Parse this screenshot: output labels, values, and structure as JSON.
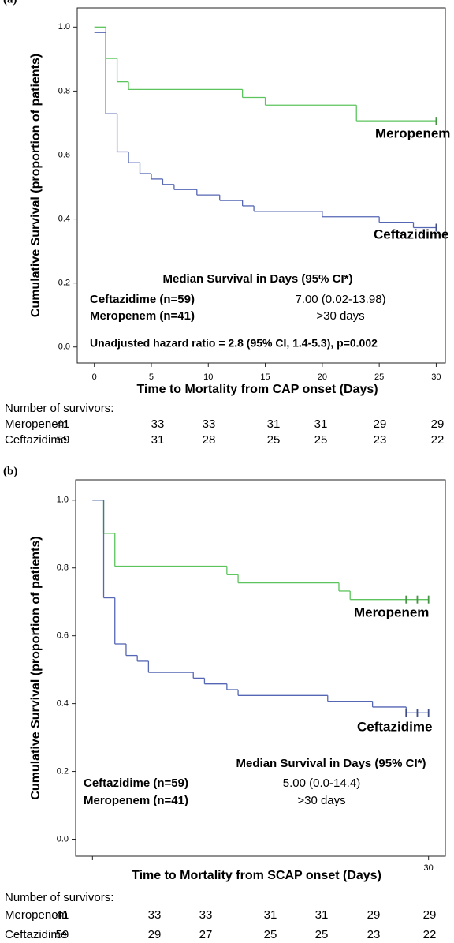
{
  "chart_data": [
    {
      "type": "line",
      "panel_label": "(a)",
      "ylabel": "Cumulative Survival (proportion of patients)",
      "xlabel": "Time to Mortality from CAP onset (Days)",
      "xlim": [
        -1.5,
        30.8
      ],
      "ylim": [
        -0.05,
        1.06
      ],
      "xticks": [
        0,
        5,
        10,
        15,
        20,
        25,
        30
      ],
      "yticks": [
        {
          "value": 0,
          "label": "0.0"
        },
        0.2,
        0.4,
        0.6,
        0.8,
        {
          "value": 1,
          "label": "1.0"
        }
      ],
      "series": [
        {
          "name": "Meropenem",
          "color": "#5cc45c",
          "x": [
            0,
            1,
            2,
            3,
            13,
            15,
            23
          ],
          "values": [
            1,
            0.902,
            0.829,
            0.805,
            0.78,
            0.756,
            0.707
          ],
          "censored_x": [
            30
          ]
        },
        {
          "name": "Ceftazidime",
          "color": "#5566b4",
          "x": [
            0,
            1,
            2,
            3,
            4,
            5,
            6,
            7,
            9,
            11,
            13,
            14,
            20,
            25,
            28
          ],
          "values": [
            0.983,
            0.729,
            0.61,
            0.576,
            0.542,
            0.525,
            0.508,
            0.492,
            0.475,
            0.458,
            0.441,
            0.424,
            0.407,
            0.39,
            0.373
          ],
          "censored_x": [
            30
          ]
        }
      ],
      "median_table": {
        "title": "Median Survival in Days (95% CI*)",
        "rows": [
          {
            "group": "Ceftazidime (n=59)",
            "value": "7.00 (0.02-13.98)"
          },
          {
            "group": "Meropenem (n=41)",
            "value": ">30 days"
          }
        ]
      },
      "note": "Unadjusted hazard ratio = 2.8 (95% CI, 1.4-5.3), p=0.002",
      "risk_table": {
        "title": "Number of survivors:",
        "rows": [
          {
            "name": "Meropenem",
            "values": [
              41,
              33,
              33,
              31,
              31,
              29,
              29
            ]
          },
          {
            "name": "Ceftazidime",
            "values": [
              59,
              31,
              28,
              25,
              25,
              23,
              22
            ]
          }
        ]
      }
    },
    {
      "type": "line",
      "panel_label": "(b)",
      "ylabel": "Cumulative Survival (proportion of patients)",
      "xlabel": "Time to Mortality from SCAP onset (Days)",
      "xlim": [
        -1.5,
        31.5
      ],
      "ylim": [
        -0.05,
        1.06
      ],
      "xticks": [
        30
      ],
      "yticks": [
        {
          "value": 0,
          "label": "0.0"
        },
        0.2,
        0.4,
        0.6,
        0.8,
        {
          "value": 1,
          "label": "1.0"
        }
      ],
      "series": [
        {
          "name": "Meropenem",
          "color": "#5cc45c",
          "x": [
            0,
            1,
            2,
            12,
            13,
            22,
            23
          ],
          "values": [
            1,
            0.902,
            0.805,
            0.78,
            0.756,
            0.732,
            0.707
          ],
          "censored_x": [
            28,
            29,
            30
          ]
        },
        {
          "name": "Ceftazidime",
          "color": "#5566b4",
          "x": [
            0,
            1,
            2,
            3,
            4,
            5,
            9,
            10,
            12,
            13,
            21,
            25,
            28
          ],
          "values": [
            1,
            0.712,
            0.576,
            0.542,
            0.525,
            0.492,
            0.475,
            0.458,
            0.441,
            0.424,
            0.407,
            0.39,
            0.373
          ],
          "censored_x": [
            28,
            29,
            30
          ]
        }
      ],
      "median_table": {
        "title": "Median Survival in Days (95% CI*)",
        "rows": [
          {
            "group": "Ceftazidime (n=59)",
            "value": "5.00 (0.0-14.4)"
          },
          {
            "group": "Meropenem (n=41)",
            "value": ">30 days"
          }
        ]
      },
      "risk_table": {
        "title": "Number of survivors:",
        "rows": [
          {
            "name": "Meropenem",
            "values": [
              41,
              33,
              33,
              31,
              31,
              29,
              29
            ]
          },
          {
            "name": "Ceftazidime",
            "values": [
              59,
              29,
              27,
              25,
              25,
              23,
              22
            ]
          }
        ]
      }
    }
  ]
}
